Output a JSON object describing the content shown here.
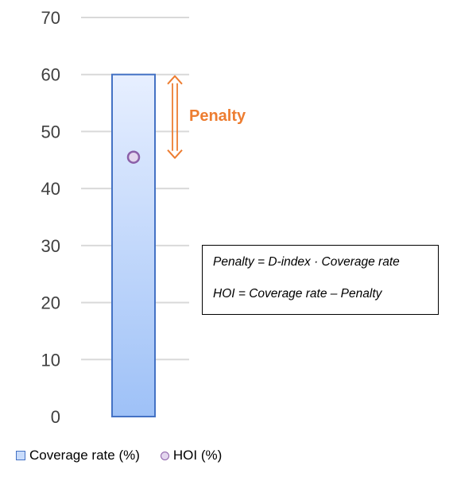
{
  "colors": {
    "bar_border": "#4472c4",
    "bar_fill_top": "#e7efff",
    "bar_fill_bottom": "#9ec1f7",
    "point_border": "#8b5fa8",
    "point_fill": "#e3d6ee",
    "penalty_accent": "#ed7d31",
    "grid": "#d9d9d9"
  },
  "chart_data": {
    "type": "bar",
    "categories": [
      ""
    ],
    "series": [
      {
        "name": "Coverage rate (%)",
        "type": "bar",
        "values": [
          60
        ]
      },
      {
        "name": "HOI (%)",
        "type": "scatter",
        "values": [
          45.5
        ]
      }
    ],
    "ylim": [
      0,
      70
    ],
    "yticks": [
      0,
      10,
      20,
      30,
      40,
      50,
      60,
      70
    ],
    "grid": true,
    "legend_position": "bottom-left",
    "annotations": {
      "penalty": {
        "label": "Penalty",
        "from": 60,
        "to": 45.5
      },
      "formulas": [
        "Penalty = D-index · Coverage rate",
        "HOI = Coverage rate – Penalty"
      ]
    }
  },
  "legend": {
    "coverage_label": "Coverage rate (%)",
    "hoi_label": "HOI (%)"
  }
}
